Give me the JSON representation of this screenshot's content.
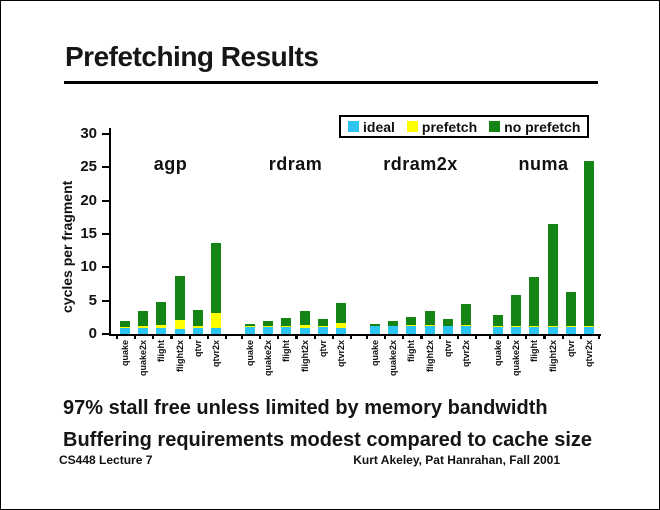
{
  "slide": {
    "title": "Prefetching Results",
    "notes": [
      "97% stall free unless limited by memory bandwidth",
      "Buffering requirements modest compared to cache size"
    ],
    "footer_left": "CS448 Lecture 7",
    "footer_right": "Kurt Akeley, Pat Hanrahan, Fall 2001"
  },
  "colors": {
    "ideal": "#2CC5F2",
    "prefetch": "#FFFF00",
    "no_prefetch": "#148414",
    "axis": "#000000"
  },
  "chart_data": {
    "type": "bar",
    "stacked": true,
    "title": "",
    "xlabel": "",
    "ylabel": "cycles per fragment",
    "ylim": [
      0,
      30
    ],
    "yticks": [
      0,
      5,
      10,
      15,
      20,
      25,
      30
    ],
    "grid": false,
    "legend": {
      "position": "top-right",
      "entries": [
        {
          "label": "ideal",
          "color": "#2CC5F2"
        },
        {
          "label": "prefetch",
          "color": "#FFFF00"
        },
        {
          "label": "no prefetch",
          "color": "#148414"
        }
      ]
    },
    "categories": [
      "quake",
      "quake2x",
      "flight",
      "flight2x",
      "qtvr",
      "qtvr2x"
    ],
    "groups": [
      {
        "label": "agp",
        "series": [
          {
            "name": "ideal",
            "values": [
              0.9,
              0.9,
              0.9,
              0.8,
              0.9,
              0.9
            ]
          },
          {
            "name": "prefetch",
            "values": [
              0.2,
              0.3,
              0.4,
              1.3,
              0.3,
              2.2
            ]
          },
          {
            "name": "no prefetch",
            "values": [
              0.9,
              2.2,
              3.5,
              6.6,
              2.4,
              10.5
            ]
          }
        ],
        "totals": [
          2.0,
          3.4,
          4.8,
          8.7,
          3.6,
          13.6
        ]
      },
      {
        "label": "rdram",
        "series": [
          {
            "name": "ideal",
            "values": [
              1.0,
              1.0,
              1.0,
              0.9,
              1.0,
              0.9
            ]
          },
          {
            "name": "prefetch",
            "values": [
              0.1,
              0.1,
              0.1,
              0.5,
              0.1,
              0.8
            ]
          },
          {
            "name": "no prefetch",
            "values": [
              0.3,
              0.8,
              1.2,
              2.1,
              1.1,
              3.0
            ]
          }
        ],
        "totals": [
          1.4,
          1.9,
          2.3,
          3.5,
          2.2,
          4.7
        ]
      },
      {
        "label": "rdram2x",
        "series": [
          {
            "name": "ideal",
            "values": [
              1.2,
              1.2,
              1.2,
              1.2,
              1.2,
              1.2
            ]
          },
          {
            "name": "prefetch",
            "values": [
              0.0,
              0.0,
              0.1,
              0.1,
              0.0,
              0.1
            ]
          },
          {
            "name": "no prefetch",
            "values": [
              0.3,
              0.8,
              1.2,
              2.1,
              1.0,
              3.2
            ]
          }
        ],
        "totals": [
          1.5,
          2.0,
          2.5,
          3.4,
          2.2,
          4.5
        ]
      },
      {
        "label": "numa",
        "series": [
          {
            "name": "ideal",
            "values": [
              1.0,
              1.0,
              1.0,
              1.0,
              1.0,
              1.0
            ]
          },
          {
            "name": "prefetch",
            "values": [
              0.1,
              0.1,
              0.2,
              0.2,
              0.1,
              0.2
            ]
          },
          {
            "name": "no prefetch",
            "values": [
              1.7,
              4.6,
              7.3,
              15.3,
              5.1,
              24.8
            ]
          }
        ],
        "totals": [
          2.8,
          5.7,
          8.5,
          16.5,
          6.2,
          26.0
        ]
      }
    ]
  }
}
